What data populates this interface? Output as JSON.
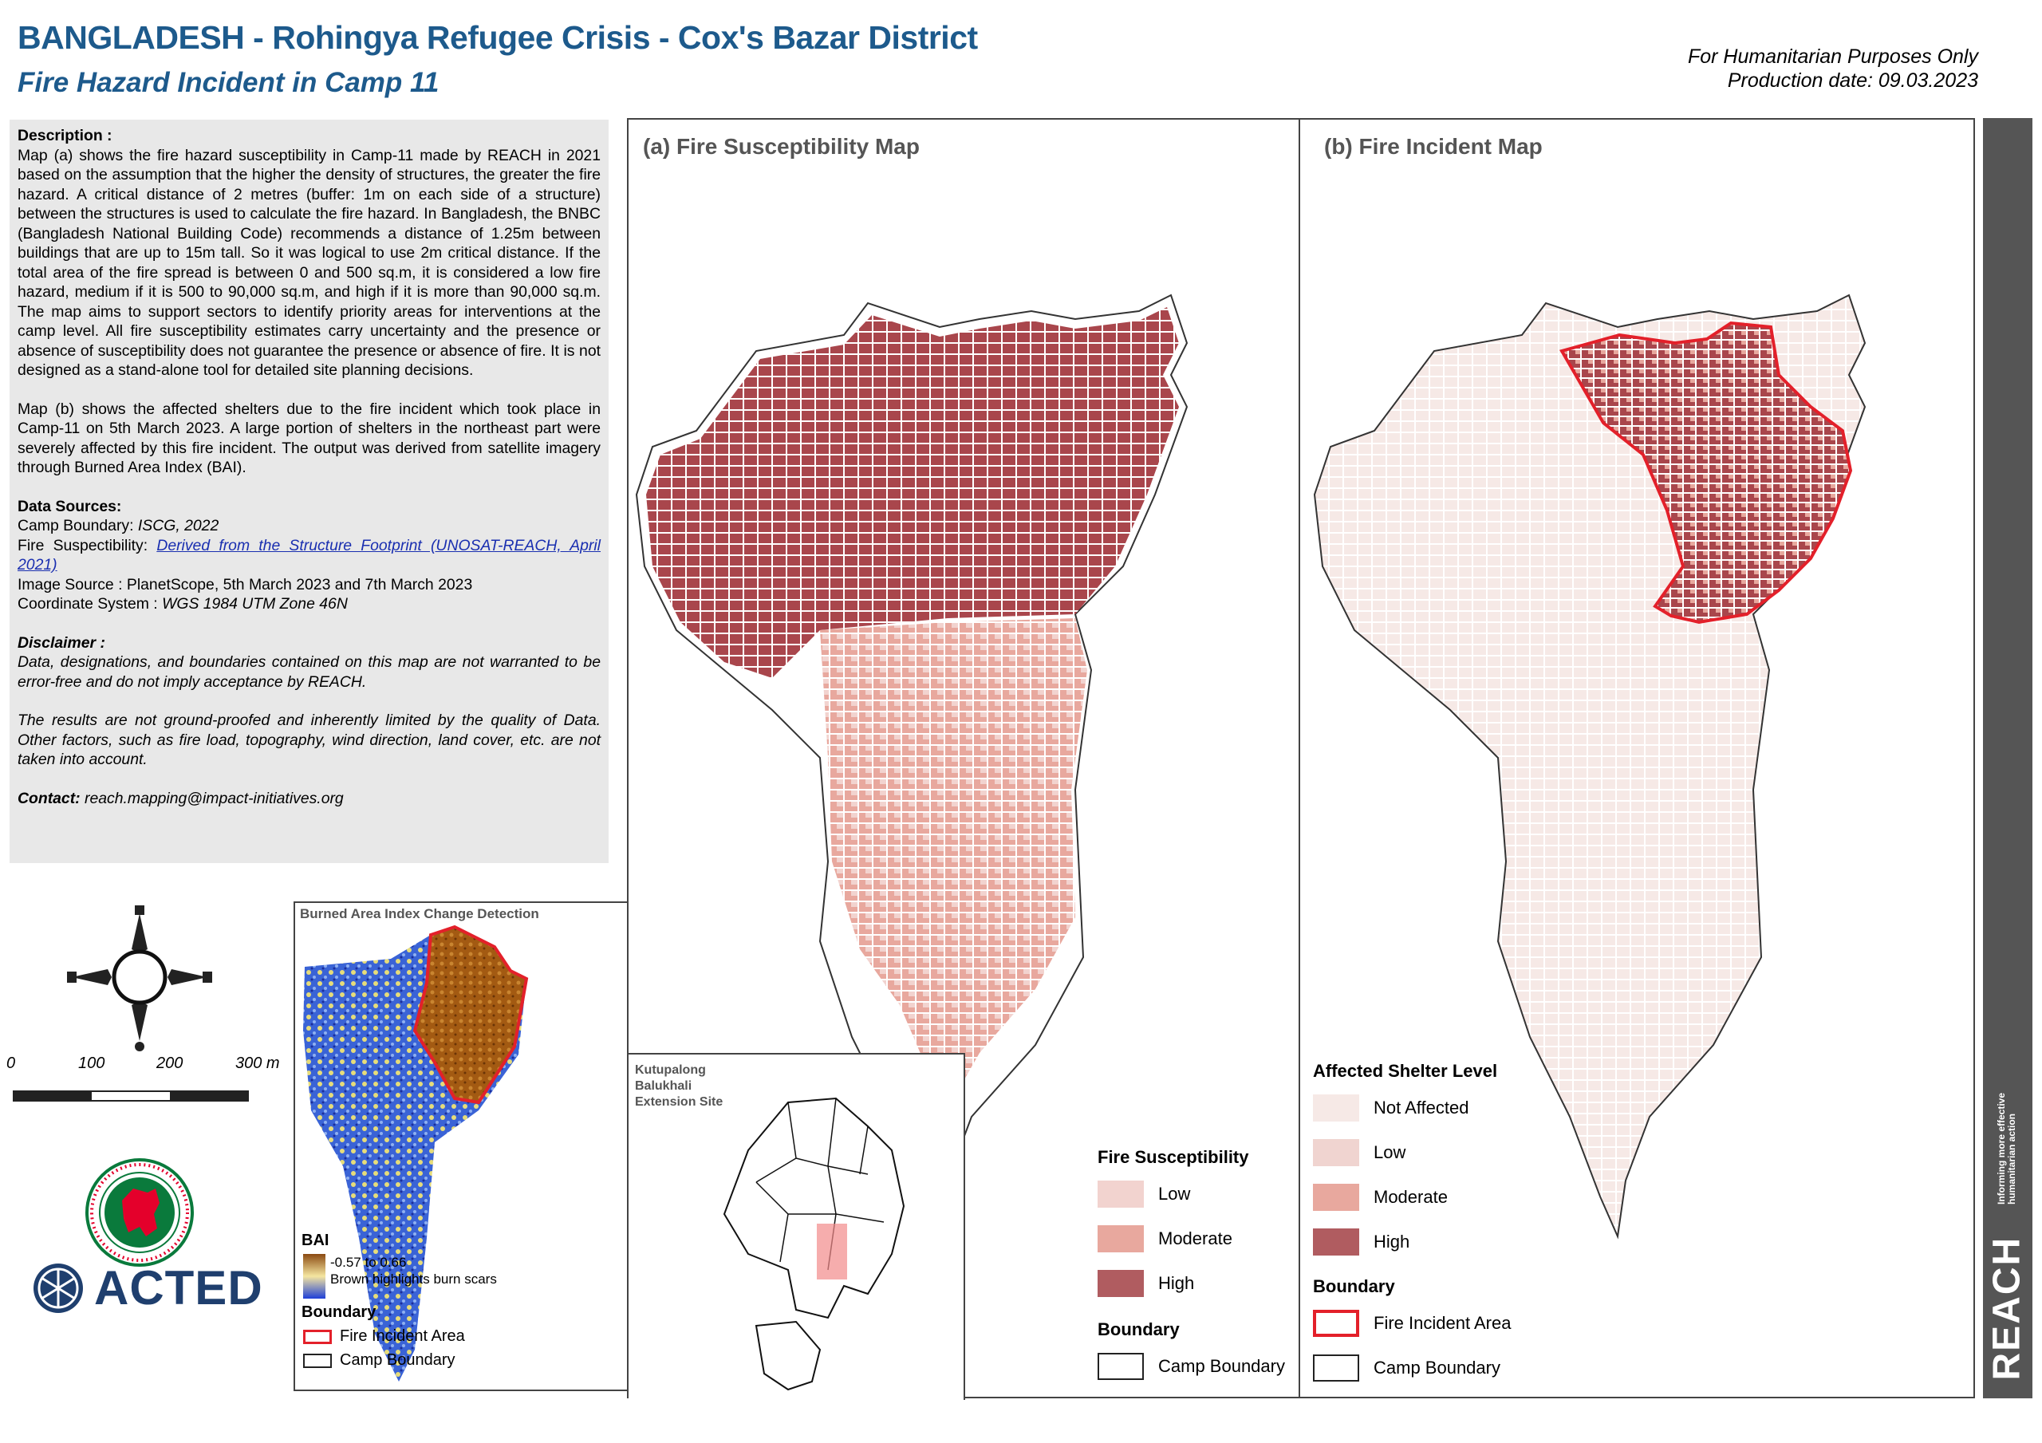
{
  "header": {
    "title": "BANGLADESH - Rohingya Refugee Crisis - Cox's Bazar District",
    "subtitle": "Fire Hazard Incident in Camp 11",
    "humanitarian": "For Humanitarian Purposes Only",
    "production_date": "Production date: 09.03.2023"
  },
  "description": {
    "heading": "Description :",
    "para1": "Map (a) shows the fire hazard susceptibility in Camp-11 made by REACH in 2021 based on the assumption that the higher the density of structures, the greater the fire hazard. A critical distance of 2 metres (buffer: 1m on each side of a structure) between the structures is used to calculate the fire hazard. In Bangladesh, the BNBC (Bangladesh National Building Code) recommends a distance of 1.25m between buildings that are up to 15m tall. So it was logical to use 2m critical distance. If the total area of the fire spread is between 0 and 500 sq.m, it is considered a low fire hazard, medium if it is 500 to 90,000 sq.m, and high if it is more than 90,000 sq.m. The map aims to support sectors to identify priority areas for interventions at the camp level. All fire susceptibility estimates carry uncertainty and the presence or absence of susceptibility does not guarantee the presence or absence of fire. It is not designed as a stand-alone tool for detailed site planning decisions.",
    "para2": "Map (b) shows the affected shelters due to the fire incident which took place in Camp-11 on 5th March 2023. A large portion of shelters in the northeast part were severely affected by this fire incident. The output was derived from satellite imagery through Burned Area Index (BAI).",
    "sources_heading": "Data Sources:",
    "camp_boundary_label": "Camp Boundary: ",
    "camp_boundary_value": "ISCG, 2022",
    "fire_susc_label": "Fire Suspectibility: ",
    "fire_susc_value": "Derived from the Structure Footprint (UNOSAT-REACH, April 2021)",
    "image_source": "Image Source : PlanetScope, 5th March 2023 and 7th March 2023",
    "coord_label": "Coordinate System : ",
    "coord_value": "WGS 1984 UTM Zone 46N",
    "disclaimer_heading": "Disclaimer :",
    "disclaimer1": "Data, designations, and boundaries contained on this map are not warranted to be error-free and do not imply acceptance by REACH.",
    "disclaimer2": "The results are not ground-proofed and inherently limited by the quality of Data. Other factors, such as fire load, topography, wind direction, land cover, etc. are not taken into account.",
    "contact_label": "Contact: ",
    "contact_value": "reach.mapping@impact-initiatives.org"
  },
  "scale": {
    "labels": [
      "0",
      "100",
      "200",
      "300 m"
    ]
  },
  "logos": {
    "acted": "ACTED",
    "gov_seal_text": "GOVERNMENT OF THE PEOPLE'S REPUBLIC OF BANGLADESH",
    "reach": "REACH",
    "reach_tagline": "Informing more effective humanitarian action"
  },
  "bai_map": {
    "title": "Burned Area Index Change Detection",
    "legend_title": "BAI",
    "range": "-0.57 to 0.66",
    "note": "Brown highlights burn scars",
    "boundary_title": "Boundary",
    "fire_area": "Fire Incident Area",
    "camp_boundary": "Camp Boundary"
  },
  "inset": {
    "title": "Kutupalong Balukhali Extension Site"
  },
  "map_a": {
    "title": "(a) Fire Susceptibility Map",
    "legend_title": "Fire Susceptibility",
    "levels": [
      {
        "label": "Low",
        "color": "#f2d3cf"
      },
      {
        "label": "Moderate",
        "color": "#e8a89e"
      },
      {
        "label": "High",
        "color": "#b05c60"
      }
    ],
    "boundary_title": "Boundary",
    "camp_boundary": "Camp Boundary"
  },
  "map_b": {
    "title": "(b) Fire Incident Map",
    "legend_title": "Affected Shelter Level",
    "levels": [
      {
        "label": "Not Affected",
        "color": "#f6e9e6"
      },
      {
        "label": "Low",
        "color": "#f0d4d0"
      },
      {
        "label": "Moderate",
        "color": "#e8a89e"
      },
      {
        "label": "High",
        "color": "#b05c60"
      }
    ],
    "boundary_title": "Boundary",
    "fire_area": "Fire Incident Area",
    "camp_boundary": "Camp Boundary",
    "fire_color": "#e3202a"
  },
  "compass": {
    "north_icon": "north-arrow-icon"
  }
}
